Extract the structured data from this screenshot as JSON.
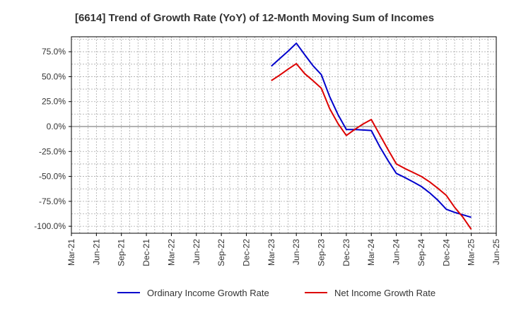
{
  "chart_data": {
    "type": "line",
    "title": "[6614]  Trend of Growth Rate (YoY) of 12-Month Moving Sum of Incomes",
    "xlabel": "",
    "ylabel": "",
    "x_ticks": [
      "Mar-21",
      "Jun-21",
      "Sep-21",
      "Dec-21",
      "Mar-22",
      "Jun-22",
      "Sep-22",
      "Dec-22",
      "Mar-23",
      "Jun-23",
      "Sep-23",
      "Dec-23",
      "Mar-24",
      "Jun-24",
      "Sep-24",
      "Dec-24",
      "Mar-25",
      "Jun-25"
    ],
    "y_ticks": [
      "75.0%",
      "50.0%",
      "25.0%",
      "0.0%",
      "-25.0%",
      "-50.0%",
      "-75.0%",
      "-100.0%"
    ],
    "y_tick_values": [
      75,
      50,
      25,
      0,
      -25,
      -50,
      -75,
      -100
    ],
    "ylim": [
      -107,
      90
    ],
    "grid": true,
    "legend_position": "bottom",
    "x": [
      "Mar-23",
      "Apr-23",
      "May-23",
      "Jun-23",
      "Jul-23",
      "Aug-23",
      "Sep-23",
      "Oct-23",
      "Nov-23",
      "Dec-23",
      "Jan-24",
      "Feb-24",
      "Mar-24",
      "Apr-24",
      "May-24",
      "Jun-24",
      "Jul-24",
      "Aug-24",
      "Sep-24",
      "Oct-24",
      "Nov-24",
      "Dec-24",
      "Jan-25",
      "Feb-25",
      "Mar-25"
    ],
    "series": [
      {
        "name": "Ordinary Income Growth Rate",
        "color": "#0000cc",
        "values": [
          60.5,
          68,
          75.5,
          83.5,
          72,
          61,
          52,
          30,
          12,
          -3,
          -3,
          -3.5,
          -4,
          -20,
          -34,
          -47,
          -51,
          -55.5,
          -60,
          -66.5,
          -74,
          -83,
          -86,
          -88.5,
          -91
        ]
      },
      {
        "name": "Net Income Growth Rate",
        "color": "#dd0000",
        "values": [
          46,
          51.5,
          57.5,
          63,
          53,
          46,
          38.5,
          18,
          3,
          -9,
          -3,
          2.5,
          7,
          -8,
          -23,
          -37.5,
          -42,
          -46,
          -50,
          -55.5,
          -62,
          -69,
          -81,
          -91,
          -103
        ]
      }
    ]
  }
}
